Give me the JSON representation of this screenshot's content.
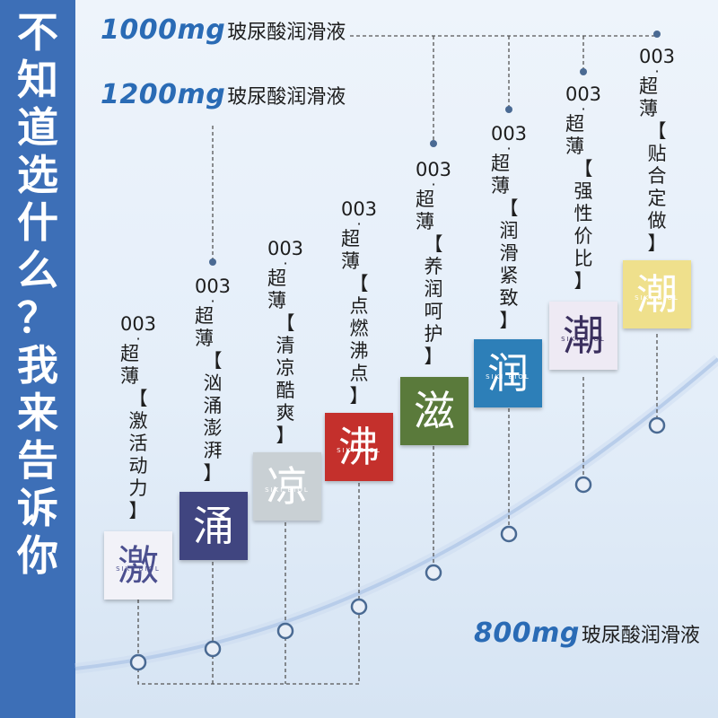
{
  "sidebar": {
    "text": [
      "不",
      "知",
      "道",
      "选",
      "什",
      "么",
      "？",
      "我",
      "来",
      "告",
      "诉",
      "你"
    ]
  },
  "captions": {
    "c1000": {
      "mg": "1000mg",
      "cn": "玻尿酸润滑液"
    },
    "c1200": {
      "mg": "1200mg",
      "cn": "玻尿酸润滑液"
    },
    "c800": {
      "mg": "800mg",
      "cn": "玻尿酸润滑液"
    }
  },
  "products": [
    {
      "code": "003",
      "thin": "超薄",
      "feature": [
        "【",
        "激",
        "活",
        "动",
        "力",
        "】"
      ],
      "glyph": "激",
      "brand": "SIKI BIOL",
      "bg": "#f2f2f8",
      "fg": "#4b4f8f"
    },
    {
      "code": "003",
      "thin": "超薄",
      "feature": [
        "【",
        "汹",
        "涌",
        "澎",
        "湃",
        "】"
      ],
      "glyph": "涌",
      "brand": "",
      "bg": "#404580",
      "fg": "#ffffff"
    },
    {
      "code": "003",
      "thin": "超薄",
      "feature": [
        "【",
        "清",
        "凉",
        "酷",
        "爽",
        "】"
      ],
      "glyph": "凉",
      "brand": "SIKI BIOL",
      "bg": "#c9d0d4",
      "fg": "#ffffff"
    },
    {
      "code": "003",
      "thin": "超薄",
      "feature": [
        "【",
        "点",
        "燃",
        "沸",
        "点",
        "】"
      ],
      "glyph": "沸",
      "brand": "SIKI BIOL",
      "bg": "#c4302c",
      "fg": "#ffffff"
    },
    {
      "code": "003",
      "thin": "超薄",
      "feature": [
        "【",
        "养",
        "润",
        "呵",
        "护",
        "】"
      ],
      "glyph": "滋",
      "brand": "",
      "bg": "#5a7a3b",
      "fg": "#ffffff"
    },
    {
      "code": "003",
      "thin": "超薄",
      "feature": [
        "【",
        "润",
        "滑",
        "紧",
        "致",
        "】"
      ],
      "glyph": "润",
      "brand": "SIKI BIOL",
      "bg": "#2d7fb8",
      "fg": "#ffffff"
    },
    {
      "code": "003",
      "thin": "超薄",
      "feature": [
        "【",
        "强",
        "性",
        "价",
        "比",
        "】"
      ],
      "glyph": "潮",
      "brand": "SIKI BIOL",
      "bg": "#eeeaf4",
      "fg": "#3a2f5e"
    },
    {
      "code": "003",
      "thin": "超薄",
      "feature": [
        "【",
        "贴",
        "合",
        "定",
        "做",
        "】"
      ],
      "glyph": "潮",
      "brand": "SIKI BIOL",
      "bg": "#efe08c",
      "fg": "#ffffff"
    }
  ]
}
